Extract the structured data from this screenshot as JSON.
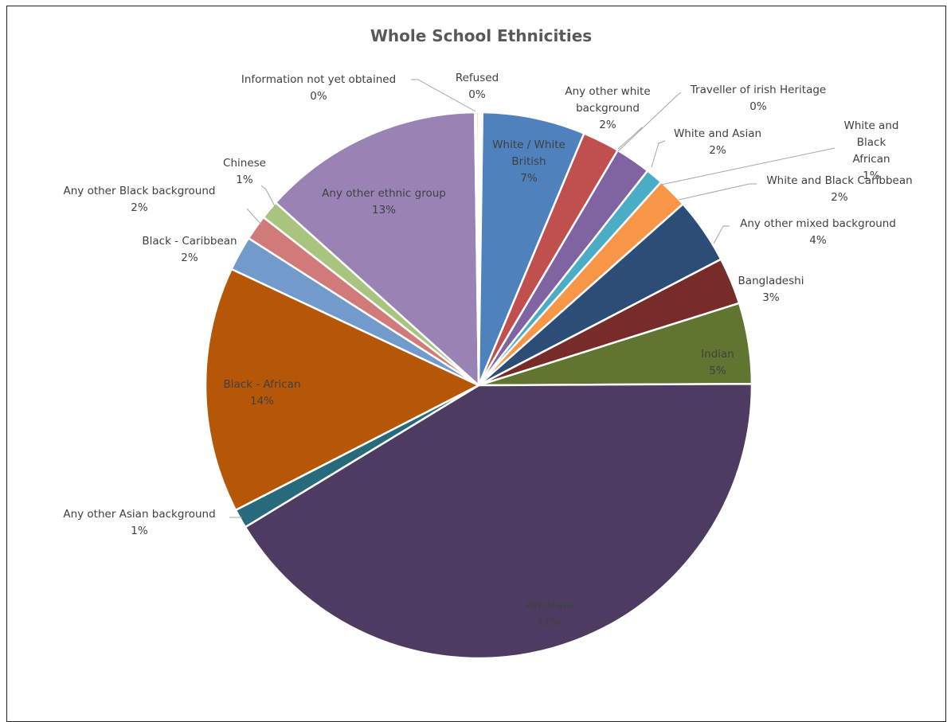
{
  "chart_data": {
    "type": "pie",
    "title": "Whole School Ethnicities",
    "slices": [
      {
        "label": "White / White British",
        "value": 7,
        "value_label": "7%",
        "color": "#4f81bd"
      },
      {
        "label": "Any other white background",
        "value": 2,
        "value_label": "2%",
        "color": "#c0504d"
      },
      {
        "label": "Traveller of irish Heritage",
        "value": 0,
        "value_label": "0%",
        "color": "#9bbb59"
      },
      {
        "label": "White and Asian",
        "value": 2,
        "value_label": "2%",
        "color": "#8064a2"
      },
      {
        "label": "White and Black African",
        "value": 1,
        "value_label": "1%",
        "color": "#4bacc6"
      },
      {
        "label": "White and Black Caribbean",
        "value": 2,
        "value_label": "2%",
        "color": "#f79646"
      },
      {
        "label": "Any other mixed background",
        "value": 4,
        "value_label": "4%",
        "color": "#2c4d75"
      },
      {
        "label": "Bangladeshi",
        "value": 3,
        "value_label": "3%",
        "color": "#772c2a"
      },
      {
        "label": "Indian",
        "value": 5,
        "value_label": "5%",
        "color": "#5f7530"
      },
      {
        "label": "Pakistani",
        "value": 41,
        "value_label": "41%",
        "color": "#4d3b62"
      },
      {
        "label": "Any other Asian background",
        "value": 1,
        "value_label": "1%",
        "color": "#276a7c"
      },
      {
        "label": "Black - African",
        "value": 14,
        "value_label": "14%",
        "color": "#b65708"
      },
      {
        "label": "Black - Caribbean",
        "value": 2,
        "value_label": "2%",
        "color": "#729aca"
      },
      {
        "label": "Any other Black background",
        "value": 2,
        "value_label": "2%",
        "color": "#d07b79"
      },
      {
        "label": "Chinese",
        "value": 1,
        "value_label": "1%",
        "color": "#a9c47f"
      },
      {
        "label": "Any other ethnic group",
        "value": 13,
        "value_label": "13%",
        "color": "#9983b5"
      },
      {
        "label": "Information not yet obtained",
        "value": 0,
        "value_label": "0%",
        "color": "#72cde2"
      },
      {
        "label": "Refused",
        "value": 0,
        "value_label": "0%",
        "color": "#f9b07a"
      }
    ],
    "legend": "none",
    "data_labels": "category name and percentage"
  }
}
